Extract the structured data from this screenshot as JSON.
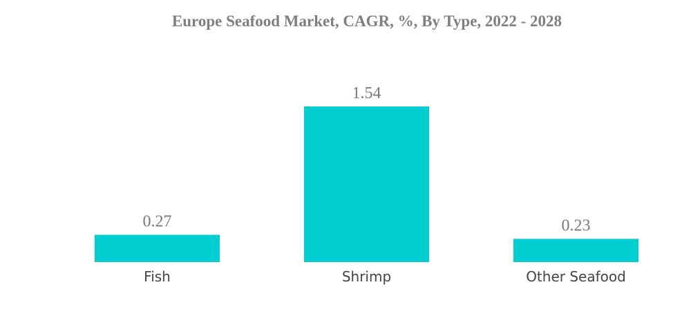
{
  "chart_data": {
    "type": "bar",
    "title": "Europe Seafood Market, CAGR, %, By Type, 2022 - 2028",
    "categories": [
      "Fish",
      "Shrimp",
      "Other Seafood"
    ],
    "values": [
      0.27,
      1.54,
      0.23
    ],
    "value_labels": [
      "0.27",
      "1.54",
      "0.23"
    ],
    "xlabel": "",
    "ylabel": "",
    "ylim": [
      0,
      1.54
    ],
    "grid": false,
    "legend": "none",
    "bar_color": "#00ced1"
  }
}
